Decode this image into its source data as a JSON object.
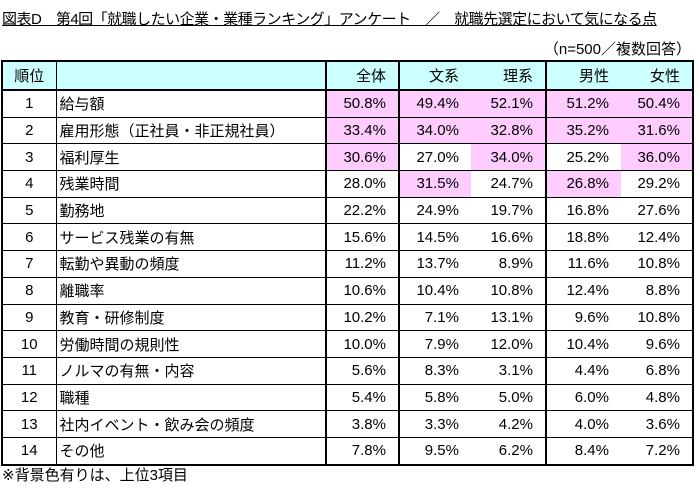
{
  "title": "図表D　第4回「就職したい企業・業種ランキング」アンケート　／　就職先選定において気になる点",
  "sample_note": "（n=500／複数回答）",
  "columns": {
    "rank": "順位",
    "item": "",
    "total": "全体",
    "humanities": "文系",
    "science": "理系",
    "male": "男性",
    "female": "女性"
  },
  "highlight_color": "#ffccff",
  "header_color": "#ccffff",
  "rows": [
    {
      "rank": "1",
      "item": "給与額",
      "values": [
        "50.8%",
        "49.4%",
        "52.1%",
        "51.2%",
        "50.4%"
      ],
      "highlight": [
        true,
        true,
        true,
        true,
        true
      ]
    },
    {
      "rank": "2",
      "item": "雇用形態（正社員・非正規社員）",
      "values": [
        "33.4%",
        "34.0%",
        "32.8%",
        "35.2%",
        "31.6%"
      ],
      "highlight": [
        true,
        true,
        true,
        true,
        true
      ]
    },
    {
      "rank": "3",
      "item": "福利厚生",
      "values": [
        "30.6%",
        "27.0%",
        "34.0%",
        "25.2%",
        "36.0%"
      ],
      "highlight": [
        true,
        false,
        true,
        false,
        true
      ]
    },
    {
      "rank": "4",
      "item": "残業時間",
      "values": [
        "28.0%",
        "31.5%",
        "24.7%",
        "26.8%",
        "29.2%"
      ],
      "highlight": [
        false,
        true,
        false,
        true,
        false
      ]
    },
    {
      "rank": "5",
      "item": "勤務地",
      "values": [
        "22.2%",
        "24.9%",
        "19.7%",
        "16.8%",
        "27.6%"
      ],
      "highlight": [
        false,
        false,
        false,
        false,
        false
      ]
    },
    {
      "rank": "6",
      "item": "サービス残業の有無",
      "values": [
        "15.6%",
        "14.5%",
        "16.6%",
        "18.8%",
        "12.4%"
      ],
      "highlight": [
        false,
        false,
        false,
        false,
        false
      ]
    },
    {
      "rank": "7",
      "item": "転勤や異動の頻度",
      "values": [
        "11.2%",
        "13.7%",
        "8.9%",
        "11.6%",
        "10.8%"
      ],
      "highlight": [
        false,
        false,
        false,
        false,
        false
      ]
    },
    {
      "rank": "8",
      "item": "離職率",
      "values": [
        "10.6%",
        "10.4%",
        "10.8%",
        "12.4%",
        "8.8%"
      ],
      "highlight": [
        false,
        false,
        false,
        false,
        false
      ]
    },
    {
      "rank": "9",
      "item": "教育・研修制度",
      "values": [
        "10.2%",
        "7.1%",
        "13.1%",
        "9.6%",
        "10.8%"
      ],
      "highlight": [
        false,
        false,
        false,
        false,
        false
      ]
    },
    {
      "rank": "10",
      "item": "労働時間の規則性",
      "values": [
        "10.0%",
        "7.9%",
        "12.0%",
        "10.4%",
        "9.6%"
      ],
      "highlight": [
        false,
        false,
        false,
        false,
        false
      ]
    },
    {
      "rank": "11",
      "item": "ノルマの有無・内容",
      "values": [
        "5.6%",
        "8.3%",
        "3.1%",
        "4.4%",
        "6.8%"
      ],
      "highlight": [
        false,
        false,
        false,
        false,
        false
      ]
    },
    {
      "rank": "12",
      "item": "職種",
      "values": [
        "5.4%",
        "5.8%",
        "5.0%",
        "6.0%",
        "4.8%"
      ],
      "highlight": [
        false,
        false,
        false,
        false,
        false
      ]
    },
    {
      "rank": "13",
      "item": "社内イベント・飲み会の頻度",
      "values": [
        "3.8%",
        "3.3%",
        "4.2%",
        "4.0%",
        "3.6%"
      ],
      "highlight": [
        false,
        false,
        false,
        false,
        false
      ]
    },
    {
      "rank": "14",
      "item": "その他",
      "values": [
        "7.8%",
        "9.5%",
        "6.2%",
        "8.4%",
        "7.2%"
      ],
      "highlight": [
        false,
        false,
        false,
        false,
        false
      ]
    }
  ],
  "footnote": "※背景色有りは、上位3項目"
}
